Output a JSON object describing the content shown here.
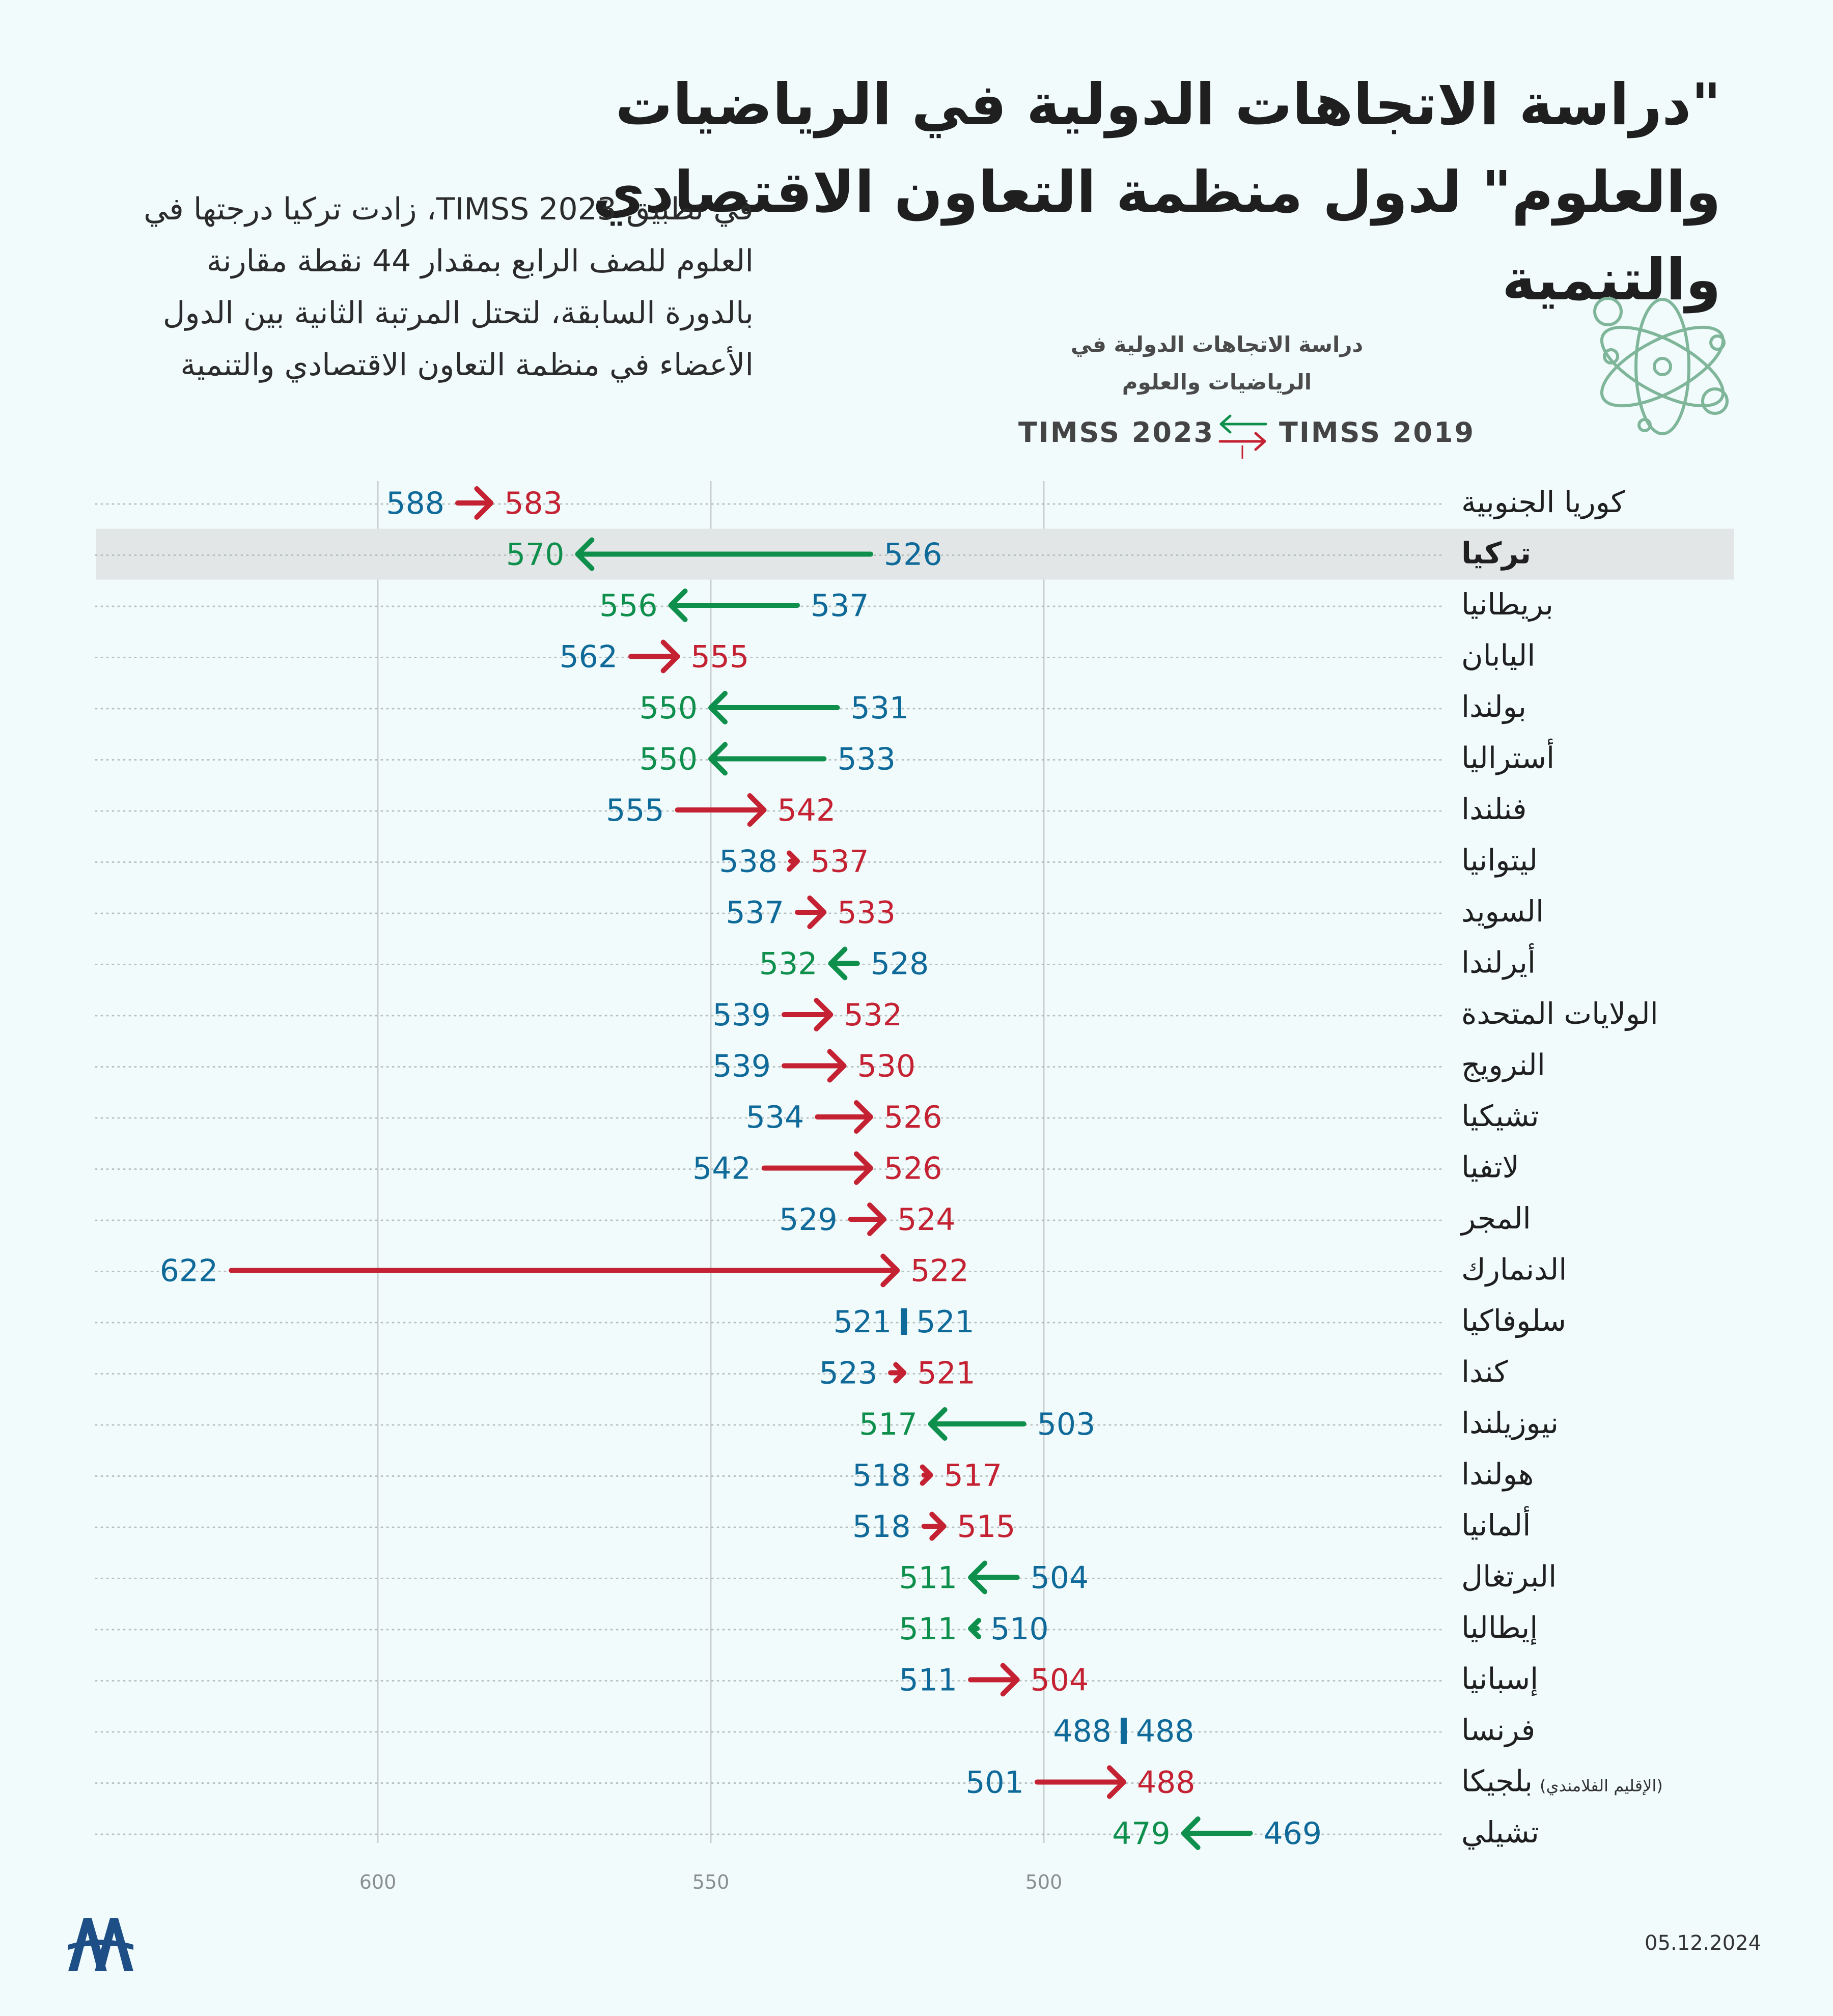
{
  "title": "\"دراسة الاتجاهات الدولية في الرياضيات والعلوم\" لدول منظمة التعاون الاقتصادي والتنمية",
  "intro": "في تطبيق TIMSS 2023، زادت تركيا درجتها في العلوم للصف الرابع بمقدار 44 نقطة مقارنة بالدورة السابقة، لتحتل المرتبة الثانية بين الدول الأعضاء في منظمة التعاون الاقتصادي والتنمية",
  "legend": {
    "subtitle": "دراسة الاتجاهات الدولية في الرياضيات والعلوم",
    "label_2023": "TIMSS 2023",
    "label_2019": "TIMSS 2019"
  },
  "colors": {
    "background": "#f1fbfc",
    "increase": "#0f8f4c",
    "decrease": "#c42232",
    "score_2019": "#0f6a99",
    "unchanged": "#0f6a99",
    "highlight_row": "#e3e6e6",
    "grid": "#c9cfd0"
  },
  "date": "05.12.2024",
  "chart_data": {
    "type": "dumbbell-arrow",
    "xlim": [
      645,
      477
    ],
    "x_reversed": true,
    "xticks": [
      600,
      550,
      500
    ],
    "grid": true,
    "highlight": "تركيا",
    "series": [
      {
        "name": "TIMSS 2019",
        "field": "y2019"
      },
      {
        "name": "TIMSS 2023",
        "field": "y2023"
      }
    ],
    "rows": [
      {
        "country": "كوريا الجنوبية",
        "y2019": 588,
        "y2023": 583
      },
      {
        "country": "تركيا",
        "y2019": 526,
        "y2023": 570
      },
      {
        "country": "بريطانيا",
        "y2019": 537,
        "y2023": 556
      },
      {
        "country": "اليابان",
        "y2019": 562,
        "y2023": 555
      },
      {
        "country": "بولندا",
        "y2019": 531,
        "y2023": 550
      },
      {
        "country": "أستراليا",
        "y2019": 533,
        "y2023": 550
      },
      {
        "country": "فنلندا",
        "y2019": 555,
        "y2023": 542
      },
      {
        "country": "ليتوانيا",
        "y2019": 538,
        "y2023": 537
      },
      {
        "country": "السويد",
        "y2019": 537,
        "y2023": 533
      },
      {
        "country": "أيرلندا",
        "y2019": 528,
        "y2023": 532
      },
      {
        "country": "الولايات المتحدة",
        "y2019": 539,
        "y2023": 532
      },
      {
        "country": "النرويج",
        "y2019": 539,
        "y2023": 530
      },
      {
        "country": "تشيكيا",
        "y2019": 534,
        "y2023": 526
      },
      {
        "country": "لاتفيا",
        "y2019": 542,
        "y2023": 526
      },
      {
        "country": "المجر",
        "y2019": 529,
        "y2023": 524
      },
      {
        "country": "الدنمارك",
        "y2019": 622,
        "y2023": 522
      },
      {
        "country": "سلوفاكيا",
        "y2019": 521,
        "y2023": 521
      },
      {
        "country": "كندا",
        "y2019": 523,
        "y2023": 521
      },
      {
        "country": "نيوزيلندا",
        "y2019": 503,
        "y2023": 517
      },
      {
        "country": "هولندا",
        "y2019": 518,
        "y2023": 517
      },
      {
        "country": "ألمانيا",
        "y2019": 518,
        "y2023": 515
      },
      {
        "country": "البرتغال",
        "y2019": 504,
        "y2023": 511
      },
      {
        "country": "إيطاليا",
        "y2019": 510,
        "y2023": 511
      },
      {
        "country": "إسبانيا",
        "y2019": 511,
        "y2023": 504
      },
      {
        "country": "فرنسا",
        "y2019": 488,
        "y2023": 488
      },
      {
        "country": "بلجيكا",
        "note": "(الإقليم الفلامندي)",
        "y2019": 501,
        "y2023": 488
      },
      {
        "country": "تشيلي",
        "y2019": 469,
        "y2023": 479
      }
    ]
  }
}
